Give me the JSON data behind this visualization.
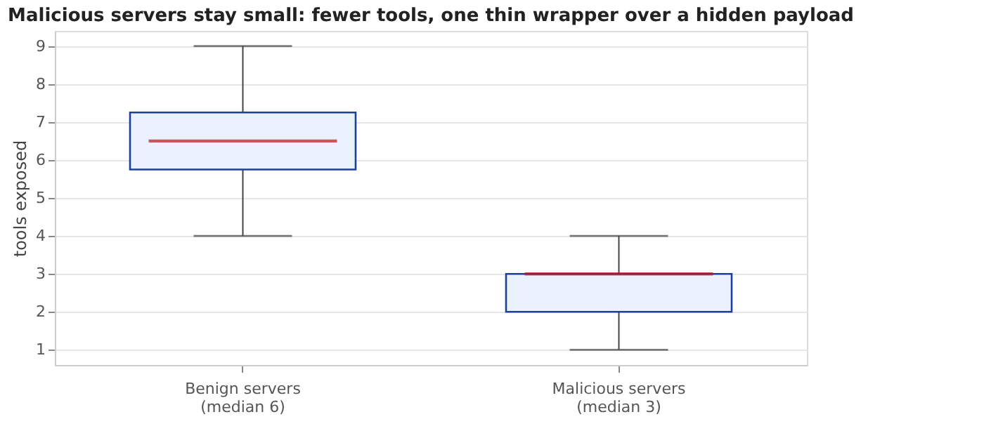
{
  "chart_data": {
    "type": "box",
    "title": "Malicious servers stay small: fewer tools, one thin wrapper over a hidden payload",
    "ylabel": "tools exposed",
    "categories": [
      "Benign servers\n(median 6)",
      "Malicious servers\n(median 3)"
    ],
    "boxes": [
      {
        "low": 4,
        "q1": 5.75,
        "median": 6.5,
        "q3": 7.25,
        "high": 9
      },
      {
        "low": 1,
        "q1": 2,
        "median": 3,
        "q3": 3,
        "high": 4
      }
    ],
    "color": "#eaf2fd",
    "ylim": [
      0.6,
      9.4
    ],
    "yticks": [
      1,
      2,
      3,
      4,
      5,
      6,
      7,
      8,
      9
    ],
    "grid": "y"
  }
}
